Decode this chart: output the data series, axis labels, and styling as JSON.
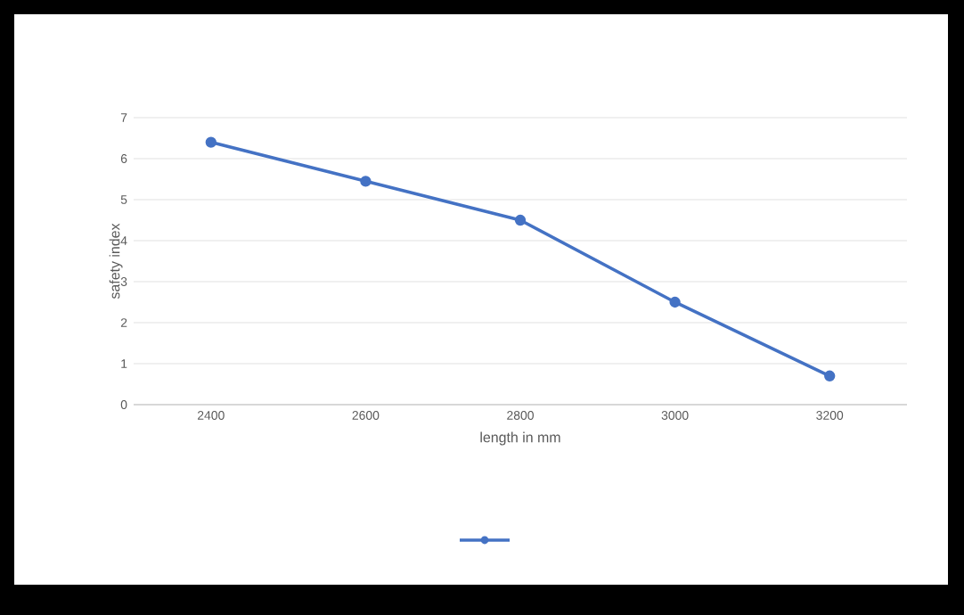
{
  "chart_data": {
    "type": "line",
    "xlabel": "length in mm",
    "ylabel": "safety index",
    "categories": [
      "2400",
      "2600",
      "2800",
      "3000",
      "3200"
    ],
    "series": [
      {
        "color": "#4472c4",
        "values": [
          6.4,
          5.45,
          4.5,
          2.5,
          0.7
        ]
      }
    ],
    "ylim": [
      0,
      7
    ],
    "yticks": [
      0,
      1,
      2,
      3,
      4,
      5,
      6,
      7
    ],
    "grid": "y",
    "marker": "circle",
    "line_style": "solid"
  }
}
